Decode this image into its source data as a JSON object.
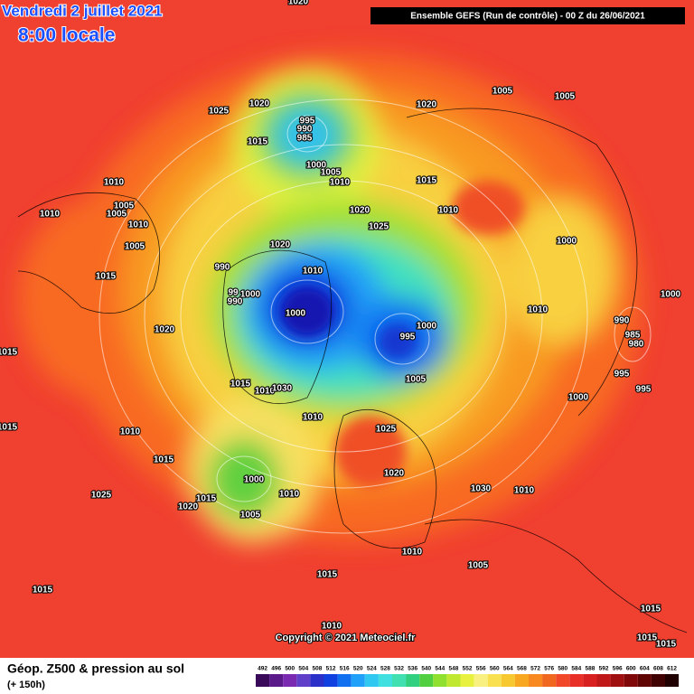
{
  "header": {
    "date": "Vendredi 2 juillet 2021",
    "time": "8:00 locale",
    "run": "Ensemble GEFS  (Run de contrôle)  - 00 Z du 26/06/2021"
  },
  "copyright": "Copyright © 2021 Meteociel.fr",
  "legend": {
    "title": "Géop. Z500 & pression au sol",
    "subtitle": "(+ 150h)",
    "scale": {
      "labels": [
        "492",
        "496",
        "500",
        "504",
        "508",
        "512",
        "516",
        "520",
        "524",
        "528",
        "532",
        "536",
        "540",
        "544",
        "548",
        "552",
        "556",
        "560",
        "564",
        "568",
        "572",
        "576",
        "580",
        "584",
        "588",
        "592",
        "596",
        "600",
        "604",
        "608",
        "612"
      ],
      "colors": [
        "#3a0a5a",
        "#5a1a8a",
        "#7a2ab0",
        "#6040c8",
        "#2a30c8",
        "#1040e0",
        "#1070f0",
        "#20a0f8",
        "#30c8f0",
        "#40e0e0",
        "#40e0b0",
        "#30d080",
        "#50d040",
        "#90e030",
        "#c0e830",
        "#e8f040",
        "#f8f080",
        "#f8e050",
        "#f8c830",
        "#f8a820",
        "#f88820",
        "#f06820",
        "#f04828",
        "#e83028",
        "#d82020",
        "#c01818",
        "#a01010",
        "#800808",
        "#600404",
        "#400202",
        "#200000"
      ]
    }
  },
  "isobars": [
    "1020",
    "1020",
    "995",
    "990",
    "985",
    "1015",
    "1000",
    "1005",
    "1010",
    "1015",
    "1020",
    "1005",
    "1005",
    "1025",
    "1010",
    "1010",
    "1005",
    "1005",
    "1010",
    "1005",
    "1015",
    "1020",
    "1025",
    "1010",
    "1020",
    "990",
    "1010",
    "1000",
    "1000",
    "1010",
    "99",
    "1000",
    "990",
    "1000",
    "1000",
    "995",
    "1005",
    "990",
    "985",
    "980",
    "995",
    "995",
    "1000",
    "1020",
    "1015",
    "1015",
    "1010",
    "1030",
    "1010",
    "1015",
    "1010",
    "1025",
    "1015",
    "1020",
    "1000",
    "1030",
    "1010",
    "1010",
    "1015",
    "1020",
    "1025",
    "1005",
    "1010",
    "1005",
    "1015",
    "1015",
    "1010",
    "1015",
    "1015",
    "1015"
  ]
}
